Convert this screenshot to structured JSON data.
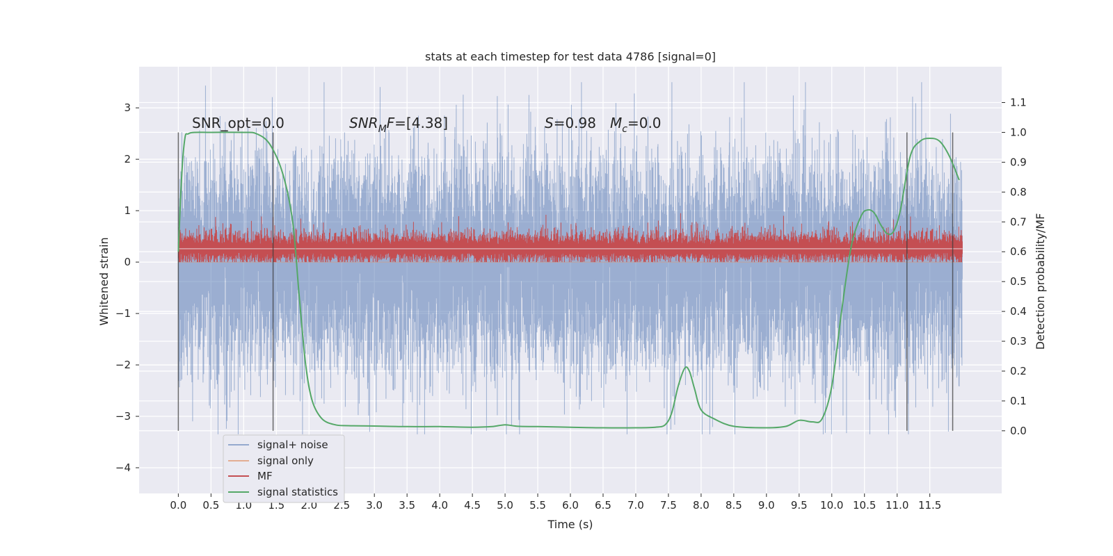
{
  "chart_data": {
    "type": "line",
    "title": "stats at each timestep for test data 4786 [signal=0]",
    "xlabel": "Time (s)",
    "ylabel": "Whitened strain",
    "y2label": "Detection probability/MF",
    "xlim": [
      -0.6,
      12.6
    ],
    "ylim": [
      -4.5,
      3.8
    ],
    "y2lim": [
      -0.21,
      1.22
    ],
    "x_ticks": [
      0.0,
      0.5,
      1.0,
      1.5,
      2.0,
      2.5,
      3.0,
      3.5,
      4.0,
      4.5,
      5.0,
      5.5,
      6.0,
      6.5,
      7.0,
      7.5,
      8.0,
      8.5,
      9.0,
      9.5,
      10.0,
      10.5,
      11.0,
      11.5
    ],
    "x_tick_labels": [
      "0.0",
      "0.5",
      "1.0",
      "1.5",
      "2.0",
      "2.5",
      "3.0",
      "3.5",
      "4.0",
      "4.5",
      "5.0",
      "5.5",
      "6.0",
      "6.5",
      "7.0",
      "7.5",
      "8.0",
      "8.5",
      "9.0",
      "9.5",
      "10.0",
      "10.5",
      "11.0",
      "11.5"
    ],
    "y_ticks": [
      -4,
      -3,
      -2,
      -1,
      0,
      1,
      2,
      3
    ],
    "y_tick_labels": [
      "−4",
      "−3",
      "−2",
      "−1",
      "0",
      "1",
      "2",
      "3"
    ],
    "y2_ticks": [
      0.0,
      0.1,
      0.2,
      0.3,
      0.4,
      0.5,
      0.6,
      0.7,
      0.8,
      0.9,
      1.0,
      1.1
    ],
    "y2_tick_labels": [
      "0.0",
      "0.1",
      "0.2",
      "0.3",
      "0.4",
      "0.5",
      "0.6",
      "0.7",
      "0.8",
      "0.9",
      "1.0",
      "1.1"
    ],
    "grid": true,
    "legend_position": "lower-left",
    "series": [
      {
        "name": "signal+ noise",
        "color": "#4c72b0",
        "axis": "left",
        "kind": "dense noise, whitened strain",
        "x_range": [
          0.0,
          12.0
        ],
        "typical_range": [
          -1.5,
          1.4
        ],
        "min": -3.35,
        "max": 3.5
      },
      {
        "name": "signal only",
        "color": "#dd8452",
        "axis": "left",
        "kind": "flat (zero signal)",
        "values": []
      },
      {
        "name": "MF",
        "color": "#c44e52",
        "axis": "left",
        "kind": "matched-filter output",
        "x_range": [
          0.0,
          12.0
        ],
        "typical_range": [
          0.0,
          0.6
        ],
        "max": 0.95
      },
      {
        "name": "signal statistics",
        "color": "#55a868",
        "axis": "right",
        "x": [
          0.0,
          0.05,
          0.1,
          0.15,
          0.25,
          0.5,
          1.0,
          1.2,
          1.4,
          1.6,
          1.75,
          1.85,
          1.95,
          2.05,
          2.2,
          2.4,
          2.6,
          3.0,
          3.5,
          4.0,
          4.5,
          4.8,
          5.0,
          5.2,
          5.5,
          6.0,
          6.5,
          7.0,
          7.3,
          7.45,
          7.55,
          7.65,
          7.75,
          7.82,
          7.9,
          8.0,
          8.2,
          8.5,
          9.0,
          9.3,
          9.5,
          9.7,
          9.85,
          10.0,
          10.15,
          10.3,
          10.45,
          10.55,
          10.65,
          10.75,
          10.85,
          10.95,
          11.05,
          11.2,
          11.35,
          11.5,
          11.65,
          11.8,
          11.95
        ],
        "values": [
          0.6,
          0.85,
          0.98,
          0.995,
          1.0,
          1.0,
          1.0,
          0.995,
          0.96,
          0.86,
          0.7,
          0.45,
          0.22,
          0.1,
          0.04,
          0.02,
          0.017,
          0.016,
          0.014,
          0.014,
          0.012,
          0.014,
          0.02,
          0.015,
          0.014,
          0.012,
          0.01,
          0.01,
          0.012,
          0.02,
          0.06,
          0.15,
          0.21,
          0.2,
          0.14,
          0.07,
          0.04,
          0.015,
          0.01,
          0.015,
          0.035,
          0.03,
          0.04,
          0.15,
          0.4,
          0.62,
          0.72,
          0.74,
          0.73,
          0.69,
          0.66,
          0.67,
          0.74,
          0.92,
          0.97,
          0.98,
          0.97,
          0.92,
          0.84
        ]
      }
    ],
    "vertical_lines": [
      0.0,
      1.45,
      11.15,
      11.85
    ],
    "annotations": [
      {
        "text": "SNR_opt=0.0",
        "x": 0.2,
        "y": 2.75
      },
      {
        "text": "SNR_MF=[4.38]",
        "x": 2.6,
        "y": 2.75
      },
      {
        "text": "S=0.98",
        "x": 5.6,
        "y": 2.75
      },
      {
        "text": "M_c=0.0",
        "x": 6.6,
        "y": 2.75
      }
    ]
  }
}
